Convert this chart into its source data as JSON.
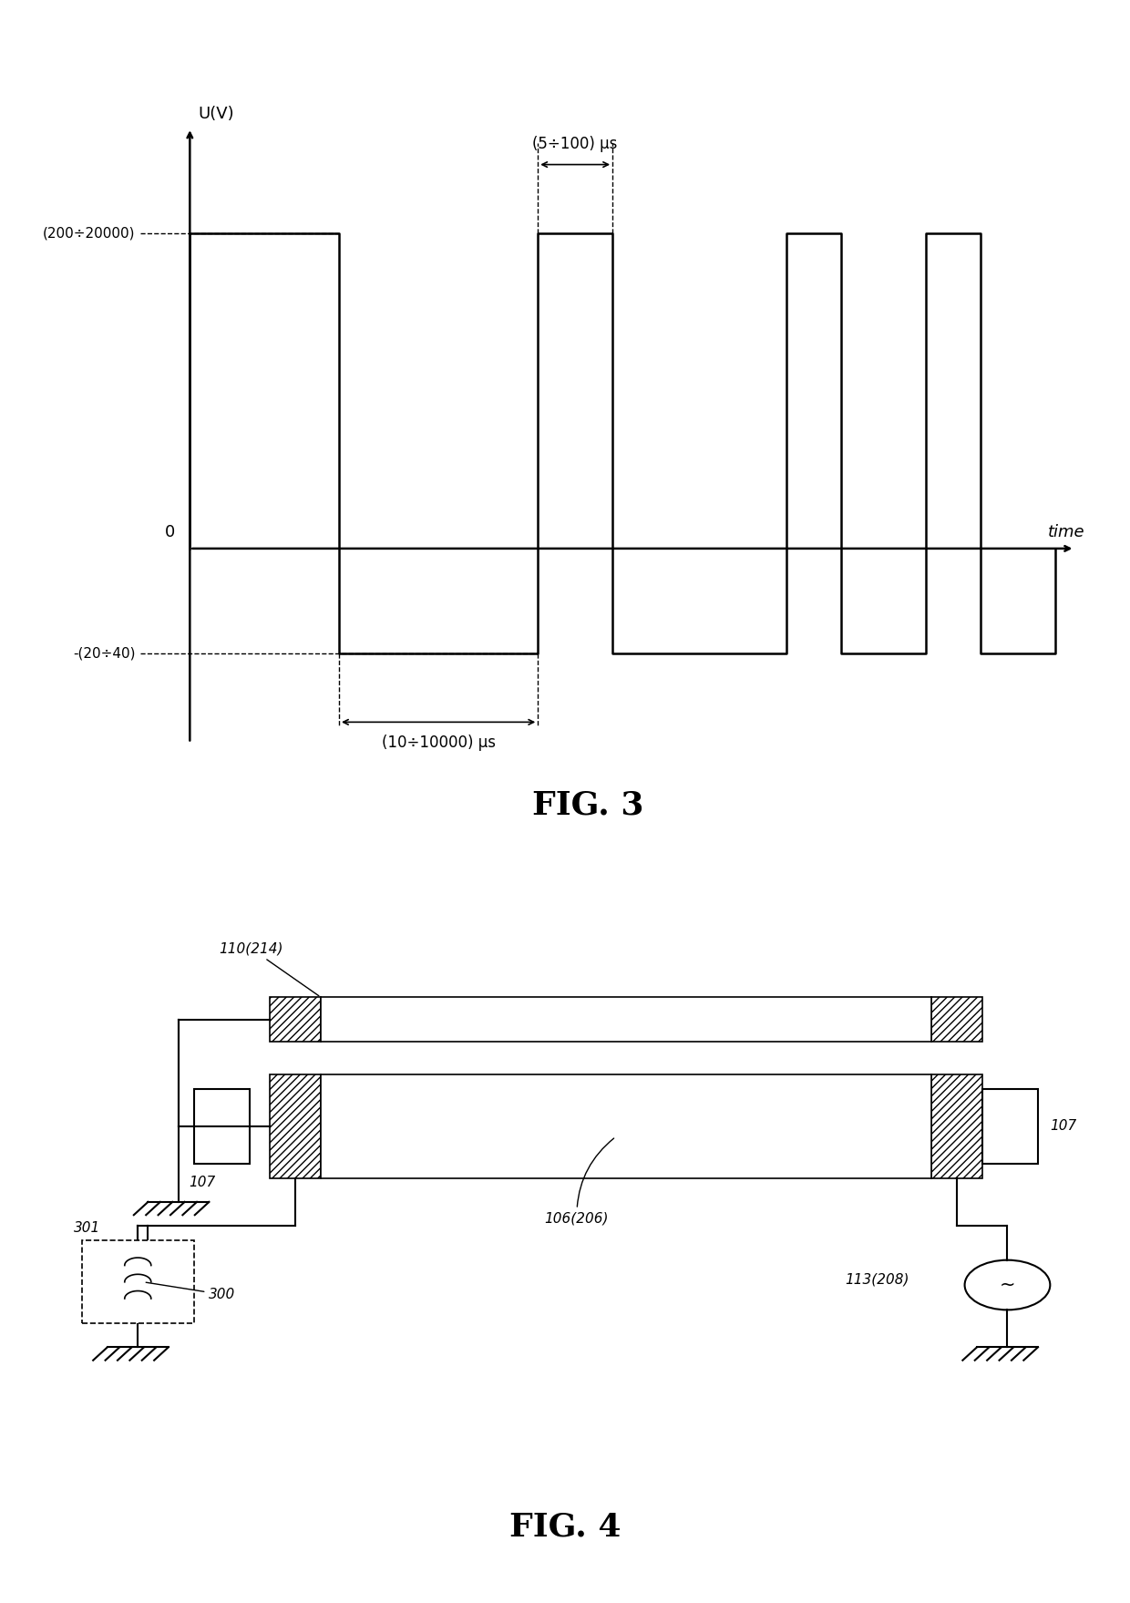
{
  "fig3_title": "FIG. 3",
  "fig4_title": "FIG. 4",
  "ylabel": "U(V)",
  "xlabel": "time",
  "high_level": 3.0,
  "low_level": -1.0,
  "high_label": "(200÷20000)",
  "low_label": "-(20÷40)",
  "annotation_top": "(5÷100) μs",
  "annotation_bottom": "(10÷10000) μs",
  "background_color": "#ffffff",
  "line_color": "#000000",
  "label_110": "110(214)",
  "label_107": "107",
  "label_106": "106(206)",
  "label_113": "113(208)",
  "label_301": "301",
  "label_300": "300"
}
